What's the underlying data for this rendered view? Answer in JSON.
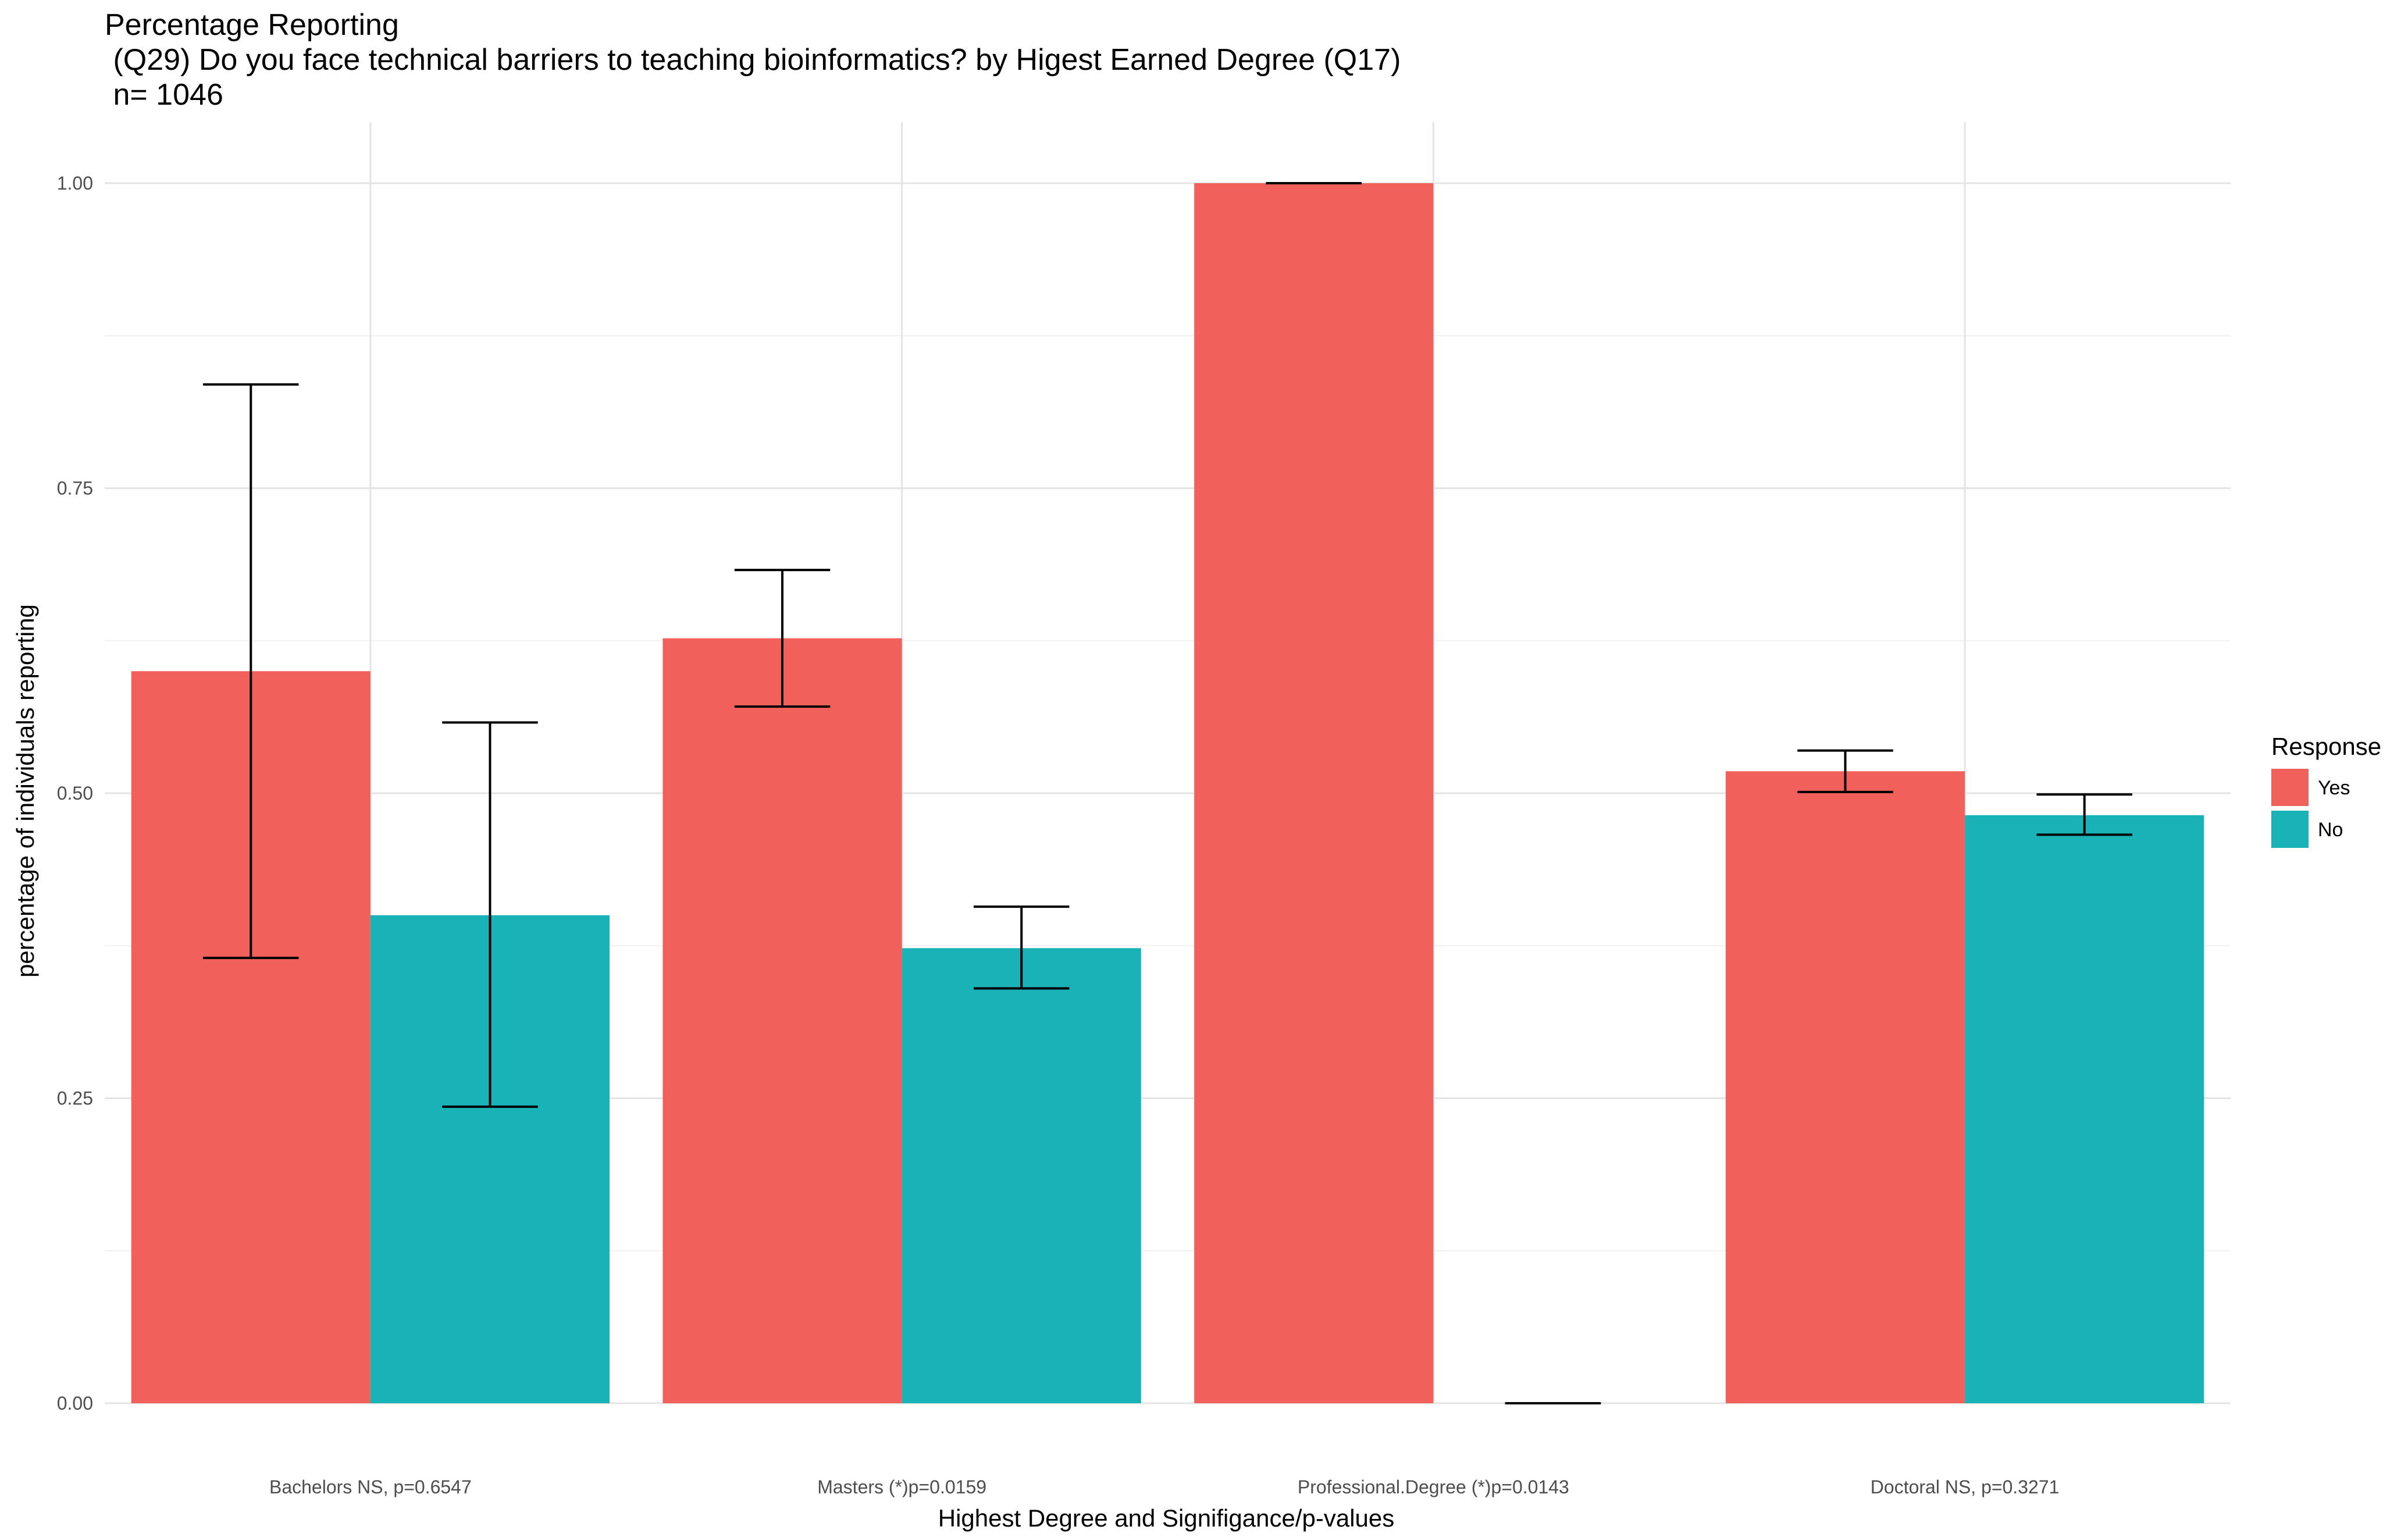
{
  "title_lines": [
    "Percentage Reporting",
    " (Q29) Do you face technical barriers to teaching bioinformatics? by Higest Earned Degree (Q17)",
    " n= 1046"
  ],
  "chart_data": {
    "type": "bar",
    "categories": [
      "Bachelors  NS, p=0.6547",
      "Masters (*)p=0.0159",
      "Professional.Degree (*)p=0.0143",
      "Doctoral  NS, p=0.3271"
    ],
    "series": [
      {
        "name": "Yes",
        "color": "#F2605C",
        "values": [
          0.6,
          0.627,
          1.0,
          0.518
        ],
        "error_low": [
          0.365,
          0.571,
          1.0,
          0.501
        ],
        "error_high": [
          0.835,
          0.683,
          1.0,
          0.535
        ]
      },
      {
        "name": "No",
        "color": "#19B3B7",
        "values": [
          0.4,
          0.373,
          0.0,
          0.482
        ],
        "error_low": [
          0.243,
          0.34,
          0.0,
          0.466
        ],
        "error_high": [
          0.558,
          0.407,
          0.0,
          0.499
        ]
      }
    ],
    "xlabel": "Highest Degree and Signifigance/p-values",
    "ylabel": "percentage of individuals reporting",
    "ylim": [
      0,
      1.0
    ],
    "yticks": [
      "0.00",
      "0.25",
      "0.50",
      "0.75",
      "1.00"
    ],
    "ytick_values": [
      0,
      0.25,
      0.5,
      0.75,
      1.0
    ],
    "grid": true,
    "legend": {
      "title": "Response",
      "position": "right"
    }
  }
}
